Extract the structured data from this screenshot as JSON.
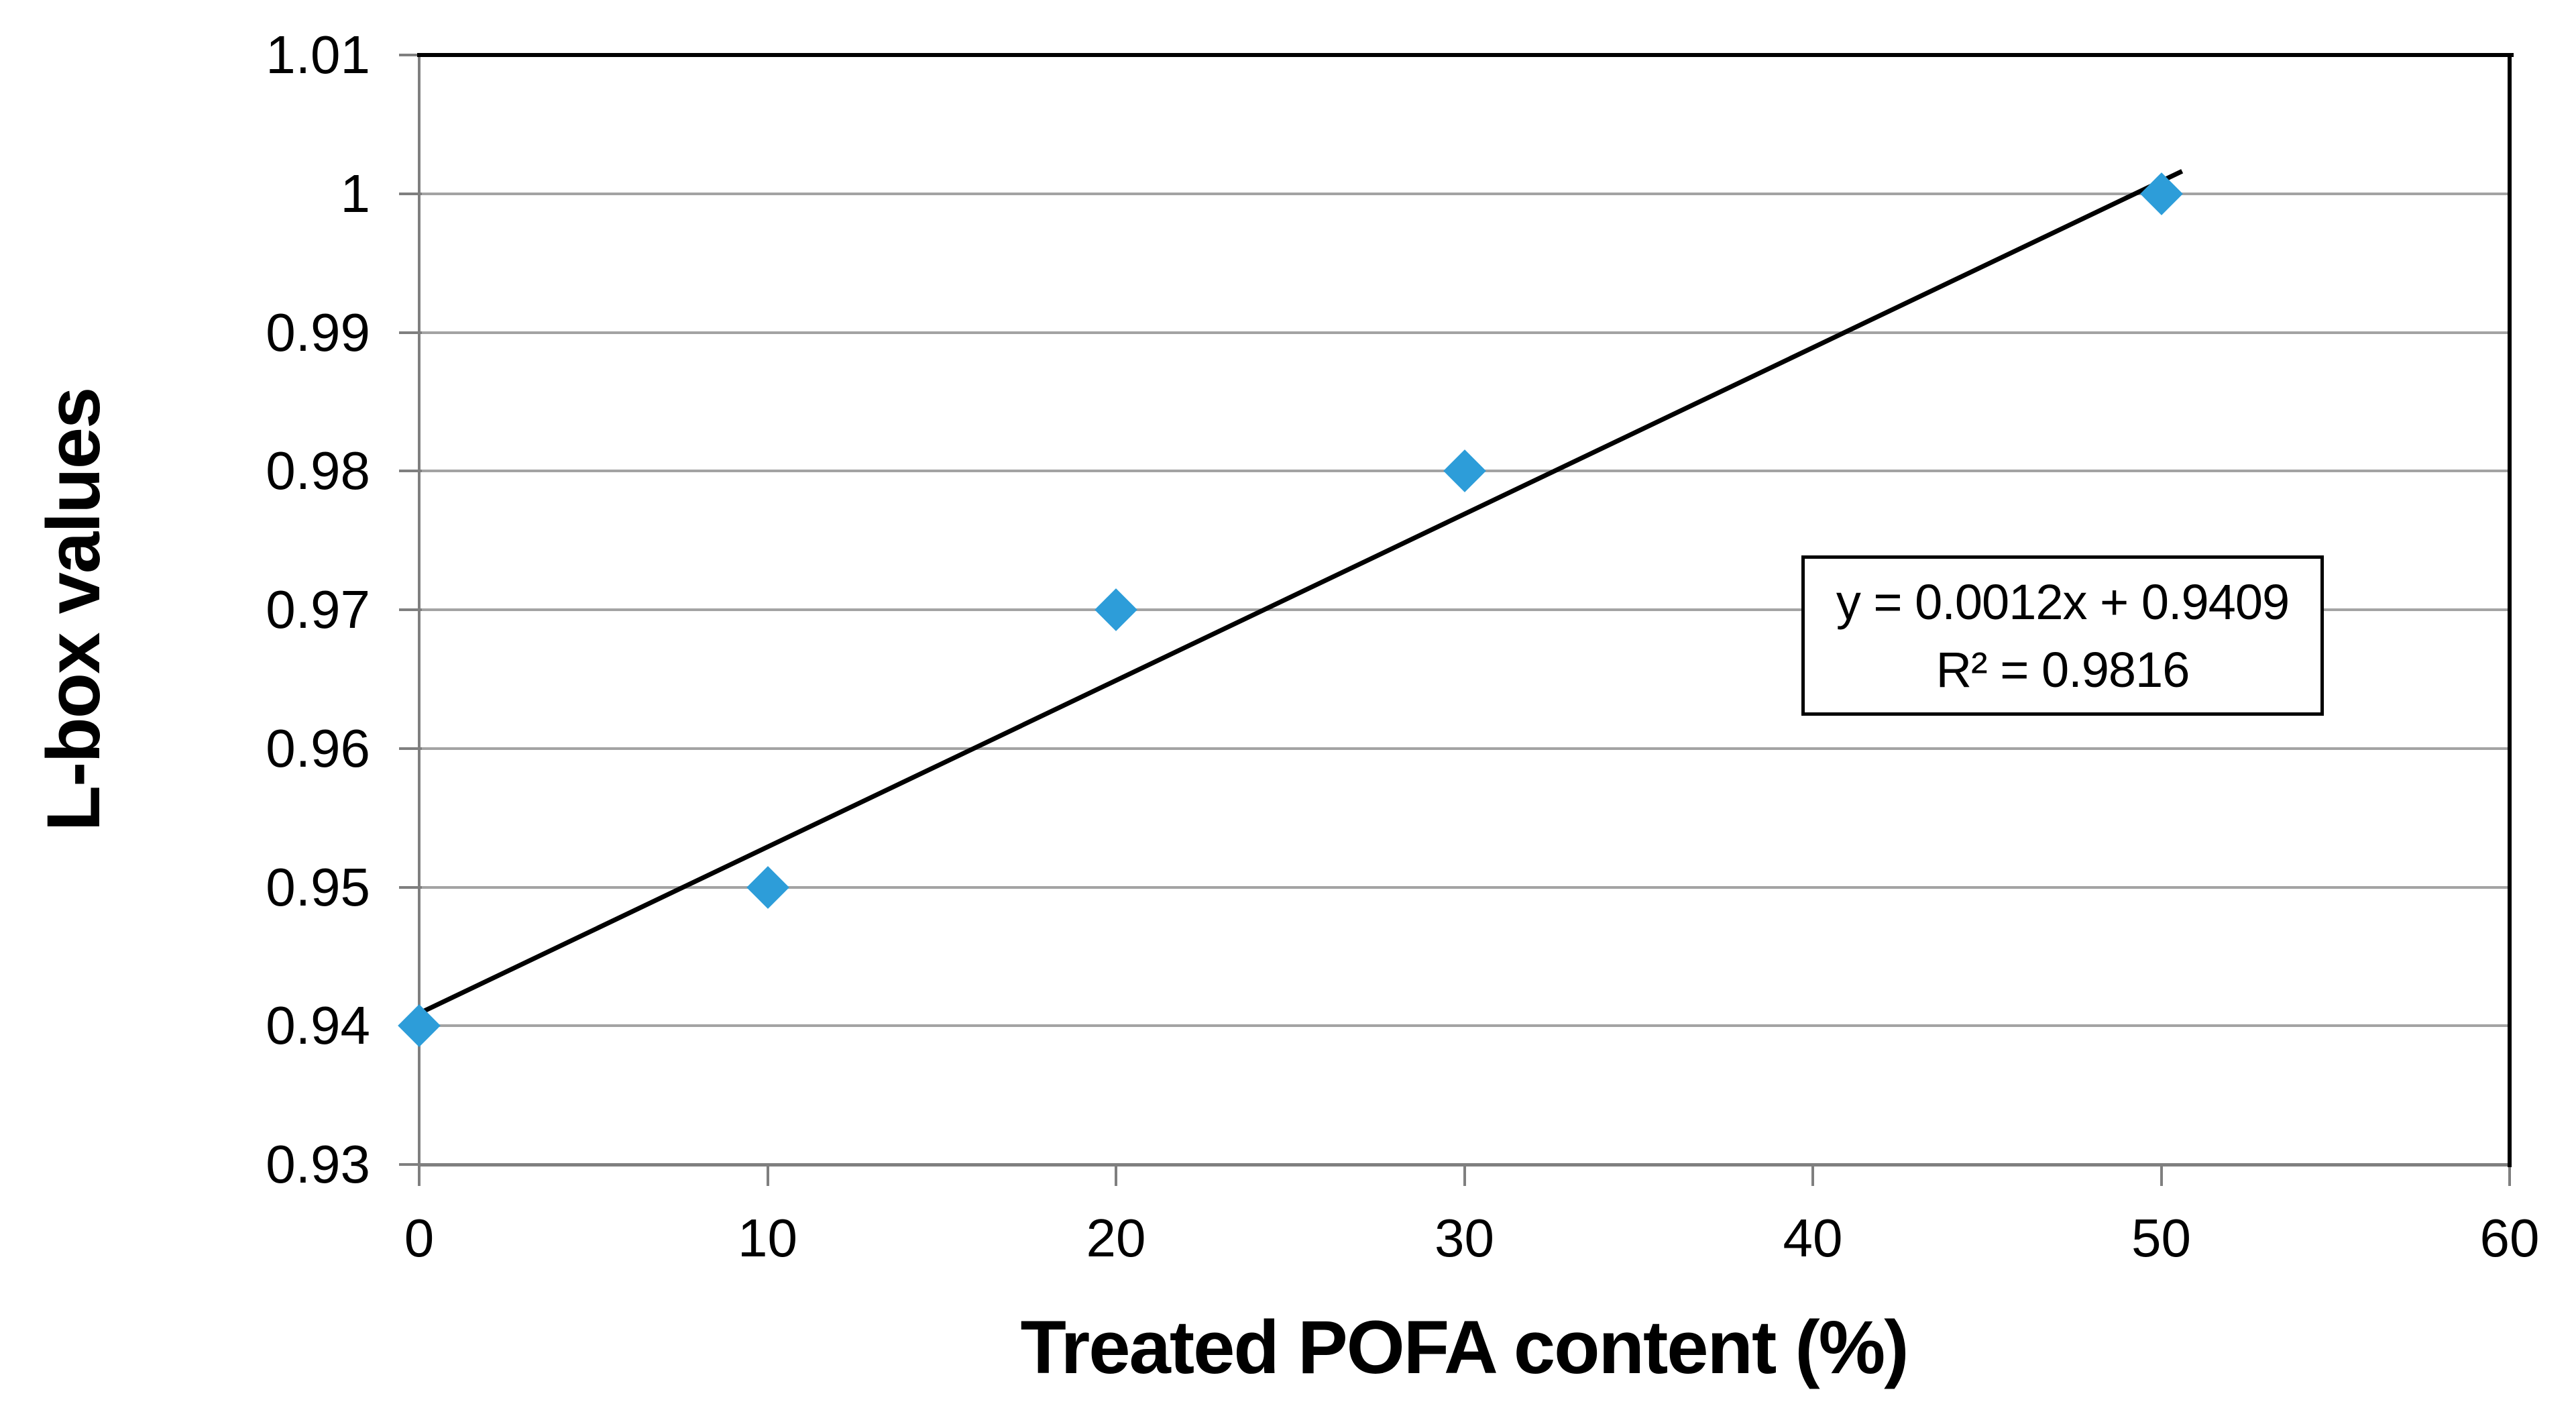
{
  "chart_data": {
    "type": "scatter",
    "title": "",
    "xlabel": "Treated POFA content (%)",
    "ylabel": "L-box values",
    "points": [
      {
        "x": 0,
        "y": 0.94
      },
      {
        "x": 10,
        "y": 0.95
      },
      {
        "x": 20,
        "y": 0.97
      },
      {
        "x": 30,
        "y": 0.98
      },
      {
        "x": 50,
        "y": 1.0
      }
    ],
    "xlim": [
      0,
      60
    ],
    "ylim": [
      0.93,
      1.01
    ],
    "xticks": [
      "0",
      "10",
      "20",
      "30",
      "40",
      "50",
      "60"
    ],
    "yticks": [
      "1.01",
      "1",
      "0.99",
      "0.98",
      "0.97",
      "0.96",
      "0.95",
      "0.94",
      "0.93"
    ],
    "grid": "horizontal-major",
    "legend_position": "none",
    "marker_shape": "diamond",
    "trendline": {
      "slope": 0.0012,
      "intercept": 0.9409,
      "r_squared": 0.9816,
      "x_draw_range": [
        0,
        50.6
      ]
    },
    "annotation": {
      "line1": "y = 0.0012x + 0.9409",
      "line2": "R² = 0.9816"
    }
  },
  "colors": {
    "marker": "#2d9dd9",
    "trendline": "#000000",
    "gridline": "#a3a3a3",
    "axis_line": "#7f7f7f",
    "plot_border": "#000000",
    "text": "#000000",
    "background": "#ffffff"
  }
}
